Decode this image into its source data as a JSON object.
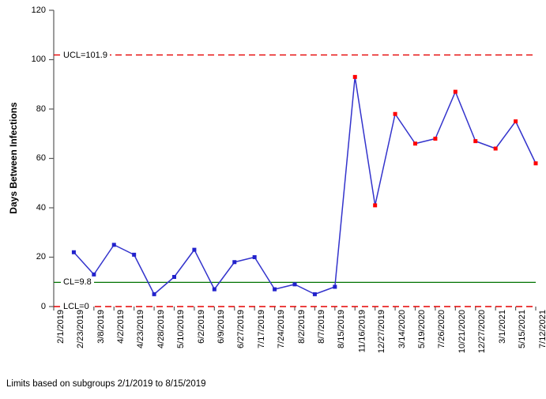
{
  "chart_data": {
    "type": "line",
    "title": "",
    "ylabel": "Days Between Infections",
    "xlabel": "",
    "footnote": "Limits based on subgroups 2/1/2019 to 8/15/2019",
    "ylim": [
      0,
      120
    ],
    "yticks": [
      0,
      20,
      40,
      60,
      80,
      100,
      120
    ],
    "grid": false,
    "legend_position": "none",
    "categories": [
      "2/1/2019",
      "2/23/2019",
      "3/8/2019",
      "4/2/2019",
      "4/23/2019",
      "4/28/2019",
      "5/10/2019",
      "6/2/2019",
      "6/9/2019",
      "6/27/2019",
      "7/17/2019",
      "7/24/2019",
      "8/2/2019",
      "8/7/2019",
      "8/15/2019",
      "11/16/2019",
      "12/27/2019",
      "3/14/2020",
      "5/19/2020",
      "7/26/2020",
      "10/21/2020",
      "12/27/2020",
      "3/1/2021",
      "5/15/2021",
      "7/12/2021"
    ],
    "series": [
      {
        "name": "Days Between Infections",
        "values": [
          null,
          22,
          13,
          25,
          21,
          5,
          12,
          23,
          7,
          18,
          20,
          7,
          9,
          5,
          8,
          93,
          41,
          78,
          66,
          68,
          87,
          67,
          64,
          75,
          58
        ],
        "point_flags": [
          "none",
          "in_control",
          "in_control",
          "in_control",
          "in_control",
          "in_control",
          "in_control",
          "in_control",
          "in_control",
          "in_control",
          "in_control",
          "in_control",
          "in_control",
          "in_control",
          "in_control",
          "out_of_control",
          "out_of_control",
          "out_of_control",
          "out_of_control",
          "out_of_control",
          "out_of_control",
          "out_of_control",
          "out_of_control",
          "out_of_control",
          "out_of_control"
        ]
      }
    ],
    "control_limits": {
      "ucl": {
        "value": 101.9,
        "label": "UCL=101.9",
        "style": "dashed"
      },
      "cl": {
        "value": 9.8,
        "label": "CL=9.8",
        "style": "solid"
      },
      "lcl": {
        "value": 0,
        "label": "LCL=0",
        "style": "dashed"
      }
    },
    "colors": {
      "line": "#3333cc",
      "marker_in_control": "#2222cc",
      "marker_out_of_control": "#ff0000",
      "limit_line": "#e60000",
      "center_line": "#007300",
      "axis": "#595959",
      "text": "#000000",
      "background": "#ffffff"
    }
  }
}
